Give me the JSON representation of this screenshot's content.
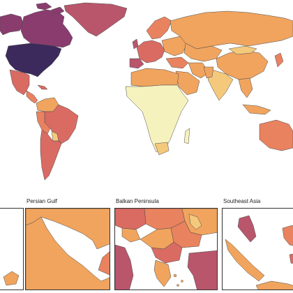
{
  "map": {
    "palette": {
      "lowest": "#f6f2be",
      "low": "#f4c97c",
      "mid_low": "#f0a45e",
      "mid": "#e9825f",
      "mid_high": "#d96b63",
      "high": "#b9566c",
      "very_high": "#8a3c6e",
      "highest": "#3d2a5c",
      "border": "#4a4a4a",
      "sea": "#ffffff"
    }
  },
  "insets": [
    {
      "title": ""
    },
    {
      "title": "Persian Gulf"
    },
    {
      "title": "Balkan Peninsula"
    },
    {
      "title": "Southeast Asia"
    }
  ]
}
